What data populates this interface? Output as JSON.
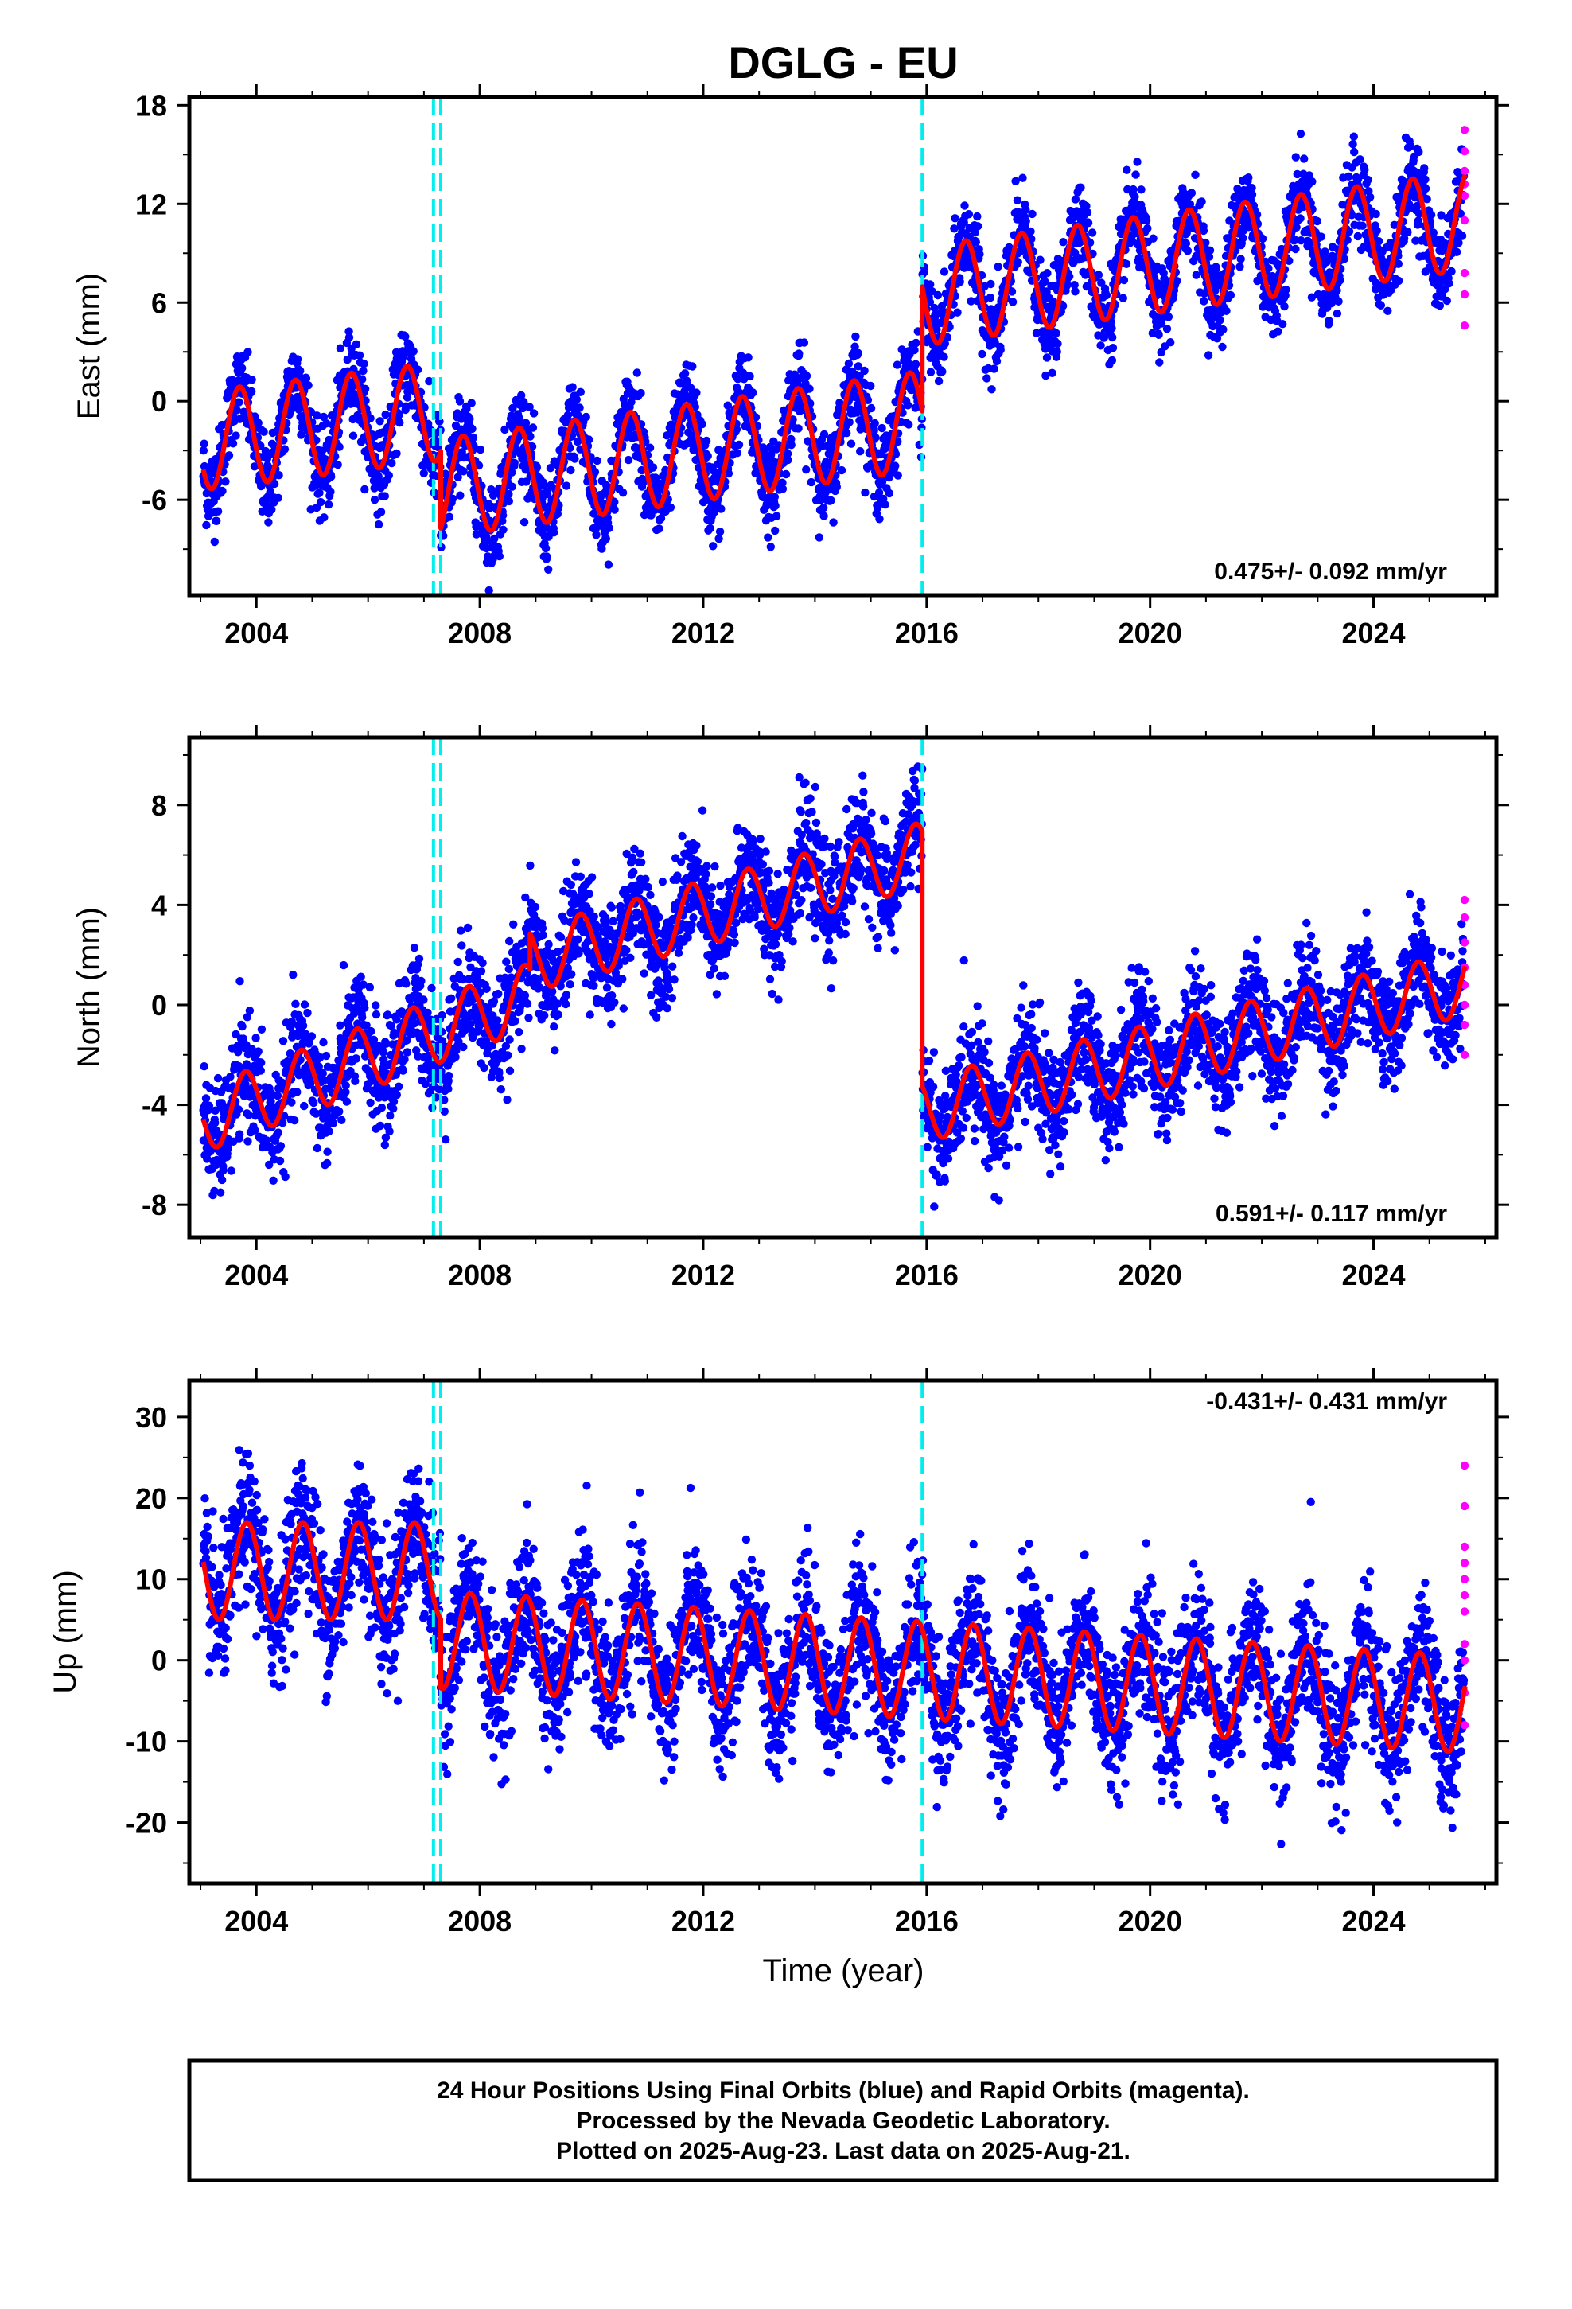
{
  "title": "DGLG - EU",
  "xlabel": "Time (year)",
  "footer": {
    "line1": "24 Hour Positions Using Final Orbits (blue) and Rapid Orbits (magenta).",
    "line2": "Processed by the Nevada Geodetic Laboratory.",
    "line3": "Plotted on 2025-Aug-23. Last data on 2025-Aug-21."
  },
  "colors": {
    "final_orbits": "#0000ff",
    "rapid_orbits": "#ff00ff",
    "model": "#ff0000",
    "equipment_change": "#00eeee"
  },
  "chart_data": [
    {
      "type": "scatter",
      "ylabel": "East (mm)",
      "rate_label": "0.475+/- 0.092 mm/yr",
      "xlim": [
        2002.8,
        2026.2
      ],
      "ylim": [
        -11.8,
        18.5
      ],
      "xticks": [
        2004,
        2008,
        2012,
        2016,
        2020,
        2024
      ],
      "yticks": [
        -6,
        0,
        6,
        12,
        18
      ],
      "steps": [
        2007.17,
        2007.3,
        2015.92
      ],
      "model": {
        "segments": [
          {
            "x": [
              2003.05,
              2007.3
            ],
            "base": -2.4,
            "rate": 0.42,
            "amp": 3.0,
            "phase": 0.45
          },
          {
            "x": [
              2007.3,
              2015.92
            ],
            "base": -5.3,
            "rate": 0.48,
            "amp": 3.0,
            "phase": 0.45
          },
          {
            "x": [
              2015.92,
              2025.64
            ],
            "base": 6.4,
            "rate": 0.47,
            "amp": 3.0,
            "phase": 0.45
          }
        ]
      },
      "scatter_sigma": 1.3,
      "rapid_points": [
        {
          "x": 2025.63,
          "y": [
            16.5,
            15.2,
            14.0,
            13.2,
            12.5,
            11.0,
            7.8,
            6.5,
            4.6
          ]
        }
      ]
    },
    {
      "type": "scatter",
      "ylabel": "North (mm)",
      "rate_label": "0.591+/- 0.117 mm/yr",
      "xlim": [
        2002.8,
        2026.2
      ],
      "ylim": [
        -9.3,
        10.7
      ],
      "xticks": [
        2004,
        2008,
        2012,
        2016,
        2020,
        2024
      ],
      "yticks": [
        -8,
        -4,
        0,
        4,
        8
      ],
      "steps": [
        2007.17,
        2007.3,
        2015.92
      ],
      "model": {
        "segments": [
          {
            "x": [
              2003.05,
              2008.9
            ],
            "base": -4.6,
            "rate": 0.85,
            "amp": 1.3,
            "phase": 0.55
          },
          {
            "x": [
              2008.9,
              2015.92
            ],
            "base": 1.8,
            "rate": 0.6,
            "amp": 1.3,
            "phase": 0.55
          },
          {
            "x": [
              2015.92,
              2025.64
            ],
            "base": -4.2,
            "rate": 0.52,
            "amp": 1.3,
            "phase": 0.55
          }
        ]
      },
      "scatter_sigma": 1.1,
      "rapid_points": [
        {
          "x": 2025.63,
          "y": [
            4.2,
            3.5,
            2.5,
            1.5,
            0.8,
            0.0,
            -0.8,
            -2.0
          ]
        }
      ]
    },
    {
      "type": "scatter",
      "ylabel": "Up (mm)",
      "rate_label": "-0.431+/- 0.431 mm/yr",
      "xlim": [
        2002.8,
        2026.2
      ],
      "ylim": [
        -27.5,
        34.5
      ],
      "xticks": [
        2004,
        2008,
        2012,
        2016,
        2020,
        2024
      ],
      "yticks": [
        -20,
        -10,
        0,
        10,
        20,
        30
      ],
      "steps": [
        2007.17,
        2007.3,
        2015.92
      ],
      "model": {
        "segments": [
          {
            "x": [
              2003.05,
              2007.3
            ],
            "base": 11.0,
            "rate": 0.0,
            "amp": 6.0,
            "phase": 0.58
          },
          {
            "x": [
              2007.3,
              2025.64
            ],
            "base": 2.5,
            "rate": -0.431,
            "amp": 6.0,
            "phase": 0.58
          }
        ]
      },
      "scatter_sigma": 4.2,
      "rapid_points": [
        {
          "x": 2025.63,
          "y": [
            24.0,
            19.0,
            14.0,
            12.0,
            10.0,
            8.0,
            6.0,
            2.0,
            0.0,
            -4.0,
            -8.0
          ]
        }
      ]
    }
  ]
}
